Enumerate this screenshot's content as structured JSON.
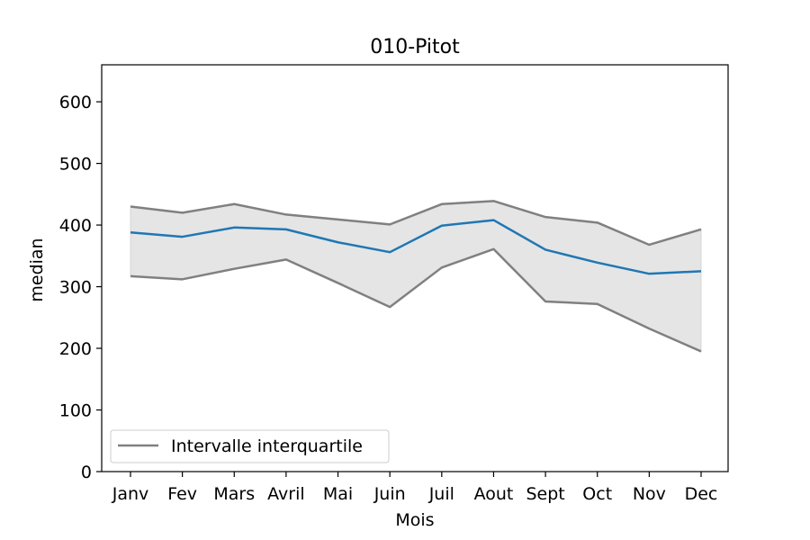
{
  "chart_data": {
    "type": "line",
    "title": "010-Pitot",
    "xlabel": "Mois",
    "ylabel": "median",
    "categories": [
      "Janv",
      "Fev",
      "Mars",
      "Avril",
      "Mai",
      "Juin",
      "Juil",
      "Aout",
      "Sept",
      "Oct",
      "Nov",
      "Dec"
    ],
    "ylim": [
      0,
      660
    ],
    "yticks": [
      0,
      100,
      200,
      300,
      400,
      500,
      600
    ],
    "series": [
      {
        "values": [
          388,
          381,
          396,
          393,
          372,
          356,
          399,
          408,
          360,
          339,
          321,
          325
        ],
        "color": "#1f77b4"
      },
      {
        "name": "Intervalle interquartile",
        "role": "upper",
        "values": [
          430,
          420,
          434,
          417,
          409,
          401,
          434,
          439,
          413,
          404,
          368,
          393
        ],
        "color": "#808080"
      },
      {
        "role": "lower",
        "values": [
          317,
          312,
          329,
          344,
          306,
          267,
          331,
          361,
          276,
          272,
          232,
          195
        ],
        "color": "#808080"
      }
    ],
    "band_color": "#e5e5e5",
    "grid": false,
    "legend": {
      "position": "lower-left",
      "entries": [
        "Intervalle interquartile"
      ]
    }
  }
}
